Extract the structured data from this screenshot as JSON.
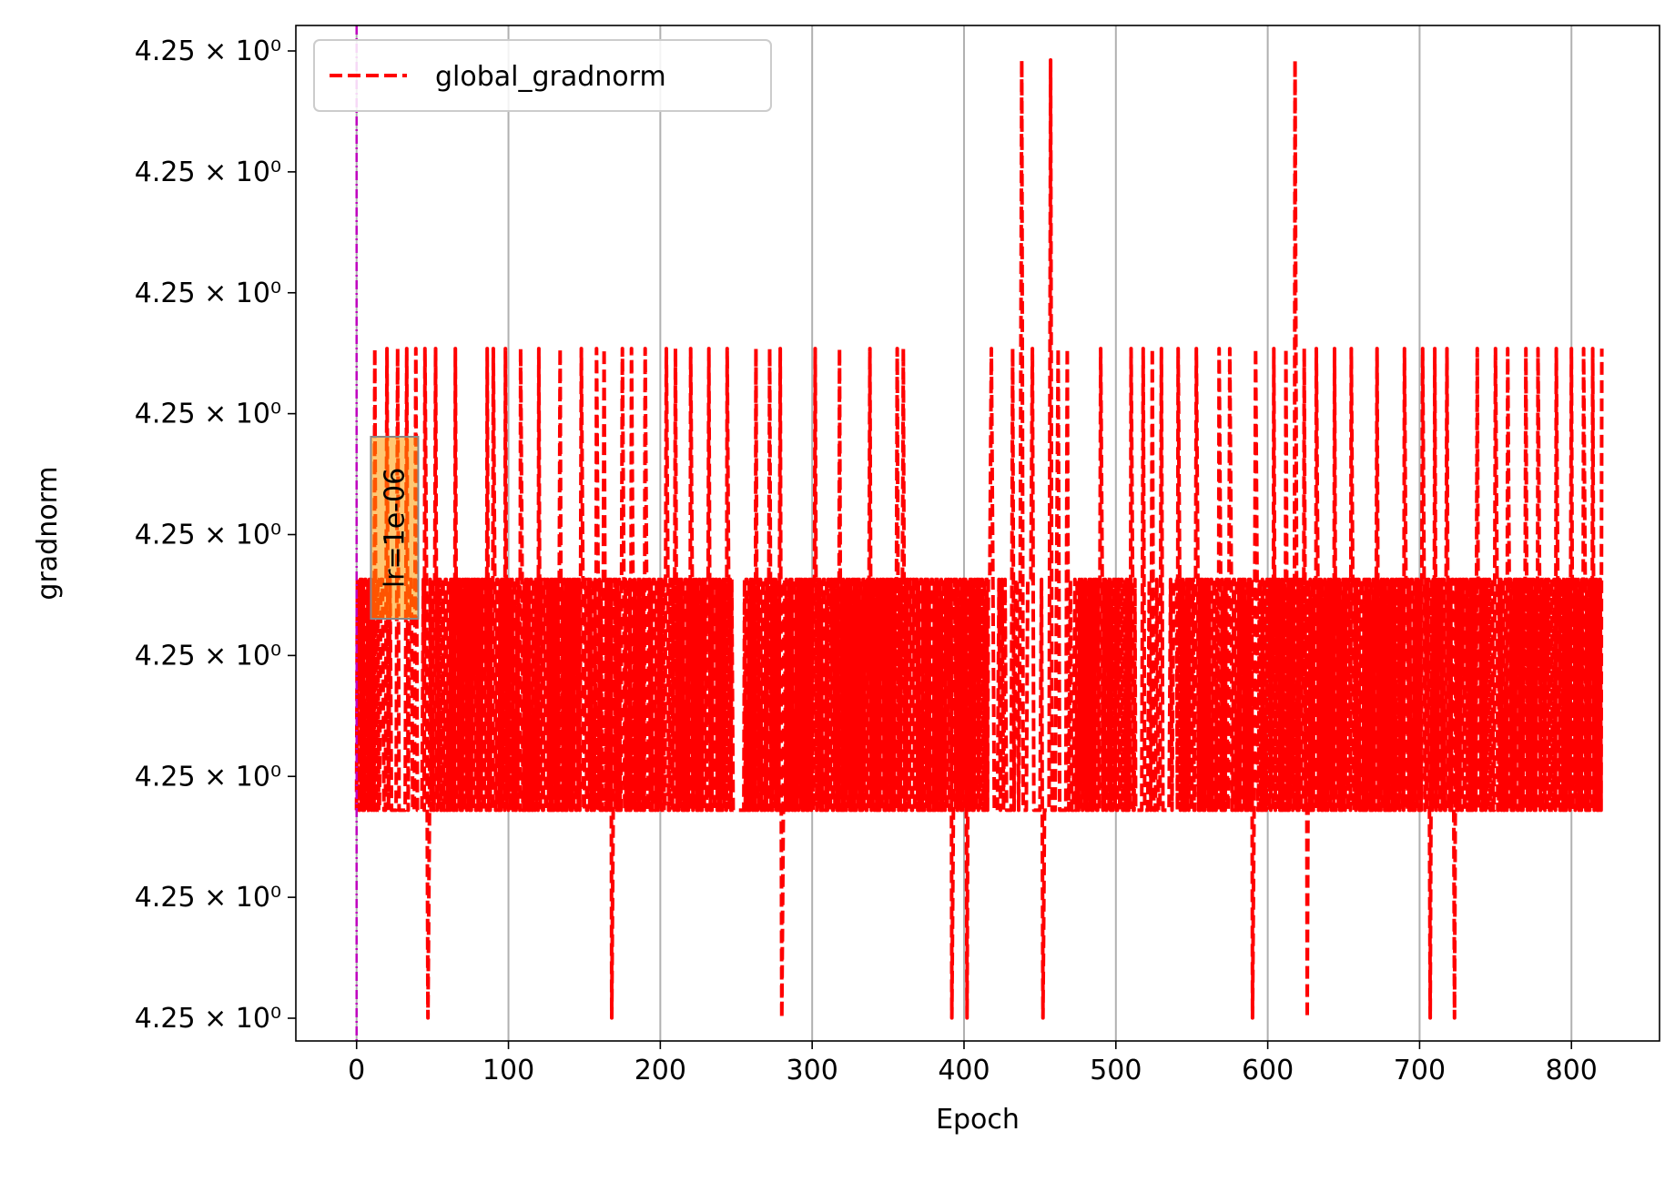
{
  "chart_data": {
    "type": "line",
    "xlabel": "Epoch",
    "ylabel": "gradnorm",
    "x_ticks": [
      0,
      100,
      200,
      300,
      400,
      500,
      600,
      700,
      800
    ],
    "x_tick_labels": [
      "0",
      "100",
      "200",
      "300",
      "400",
      "500",
      "600",
      "700",
      "800"
    ],
    "xlim": [
      -40,
      858
    ],
    "y_tick_labels": [
      "4.25 × 10⁰",
      "4.25 × 10⁰",
      "4.25 × 10⁰",
      "4.25 × 10⁰",
      "4.25 × 10⁰",
      "4.25 × 10⁰",
      "4.25 × 10⁰",
      "4.25 × 10⁰",
      "4.25 × 10⁰"
    ],
    "y_scale": "log",
    "y_levels": {
      "spike_high": 8.5,
      "high": 6.0,
      "mid": 4.0,
      "low": 2.0,
      "dip": 0.2
    },
    "ylim": [
      0,
      8.8
    ],
    "grid": "vertical",
    "legend": {
      "position": "top-left",
      "entries": [
        "global_gradnorm"
      ]
    },
    "series": [
      {
        "name": "global_gradnorm",
        "color": "#ff0000",
        "style": "dashed",
        "x_range": [
          0,
          820
        ],
        "mid_level_bands": [
          [
            0,
            14
          ],
          [
            44,
            246
          ],
          [
            255,
            415
          ],
          [
            473,
            512
          ],
          [
            540,
            820
          ]
        ],
        "high_spikes": [
          12,
          20,
          27,
          33,
          39,
          45,
          52,
          65,
          86,
          90,
          98,
          108,
          120,
          134,
          148,
          158,
          163,
          168,
          175,
          181,
          190,
          204,
          210,
          220,
          232,
          244,
          263,
          272,
          279,
          302,
          318,
          338,
          356,
          360,
          392,
          402,
          418,
          432,
          438,
          445,
          452,
          462,
          468,
          490,
          510,
          518,
          524,
          530,
          541,
          553,
          568,
          575,
          592,
          604,
          612,
          618,
          624,
          632,
          644,
          655,
          672,
          690,
          702,
          710,
          718,
          738,
          750,
          758,
          770,
          778,
          790,
          800,
          808,
          814,
          820
        ],
        "top_spikes": [
          438,
          457,
          618
        ],
        "dips": [
          47,
          168,
          280,
          392,
          402,
          452,
          590,
          626,
          707,
          723
        ]
      }
    ],
    "annotations": [
      {
        "text": "lr=1e-06",
        "x": 25,
        "rotation": -90,
        "box_color": "#ff9900"
      }
    ],
    "vlines": [
      {
        "x": 0,
        "color": "#bf00bf",
        "style": "dashdot"
      }
    ]
  }
}
